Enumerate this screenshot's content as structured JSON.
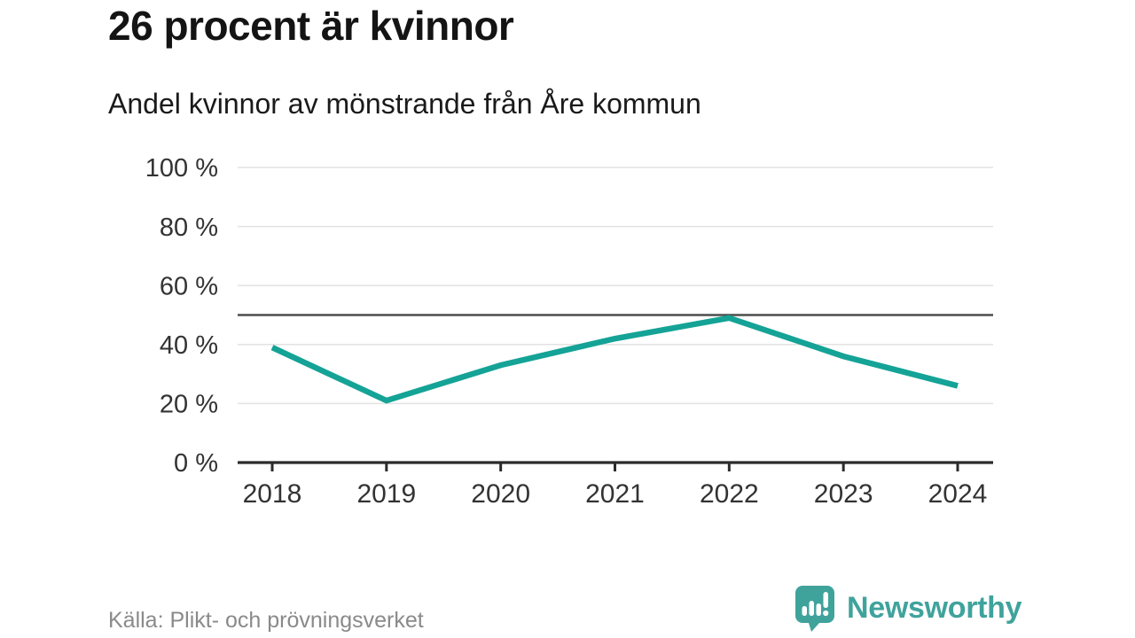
{
  "chart_data": {
    "type": "line",
    "title": "26 procent är kvinnor",
    "subtitle": "Andel kvinnor av mönstrande från Åre kommun",
    "categories": [
      "2018",
      "2019",
      "2020",
      "2021",
      "2022",
      "2023",
      "2024"
    ],
    "series": [
      {
        "name": "Andel kvinnor av mönstrande",
        "values": [
          39,
          21,
          33,
          42,
          49,
          36,
          26
        ]
      }
    ],
    "unit": "%",
    "ylim": [
      0,
      100
    ],
    "y_ticks": [
      0,
      20,
      40,
      60,
      80,
      100
    ],
    "y_tick_labels": [
      "0 %",
      "20 %",
      "40 %",
      "60 %",
      "80 %",
      "100 %"
    ],
    "reference_line": 50,
    "grid": true,
    "legend": false,
    "xlabel": "",
    "ylabel": ""
  },
  "footer": {
    "source": "Källa: Plikt- och prövningsverket",
    "brand": "Newsworthy"
  },
  "colors": {
    "line": "#14a396",
    "grid": "#e2e2e2",
    "reference": "#4d4d4d",
    "axis": "#2b2b2b",
    "tick_text": "#333333",
    "brand": "#3fa39c"
  }
}
